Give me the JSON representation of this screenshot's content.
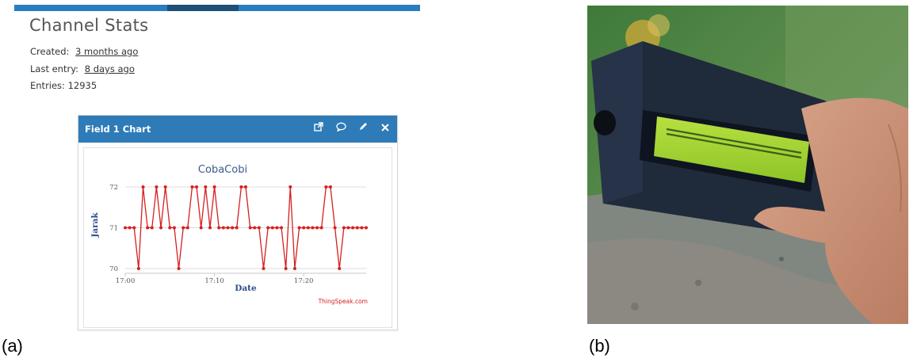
{
  "panel_a": {
    "title": "Channel Stats",
    "created_label": "Created:",
    "created_value": "3 months ago",
    "last_entry_label": "Last entry:",
    "last_entry_value": "8 days ago",
    "entries_label": "Entries:",
    "entries_value": "12935",
    "widget": {
      "title": "Field 1 Chart",
      "icons": [
        "external-link-icon",
        "comment-icon",
        "pencil-icon",
        "close-icon"
      ],
      "credit": "ThingSpeak.com"
    }
  },
  "chart_data": {
    "type": "line",
    "title": "CobaCobi",
    "xlabel": "Date",
    "ylabel": "Jarak",
    "x_ticks": [
      "17:00",
      "17:10",
      "17:20"
    ],
    "y_ticks": [
      70,
      71,
      72
    ],
    "ylim": [
      70,
      72
    ],
    "xlim_minutes": [
      0,
      27
    ],
    "grid": true,
    "series": [
      {
        "color": "#d62020",
        "x_minutes": [
          0,
          0.5,
          1,
          1.5,
          2,
          2.5,
          3,
          3.5,
          4,
          4.5,
          5,
          5.5,
          6,
          6.5,
          7,
          7.5,
          8,
          8.5,
          9,
          9.5,
          10,
          10.5,
          11,
          11.5,
          12,
          12.5,
          13,
          13.5,
          14,
          14.5,
          15,
          15.5,
          16,
          16.5,
          17,
          17.5,
          18,
          18.5,
          19,
          19.5,
          20,
          20.5,
          21,
          21.5,
          22,
          22.5,
          23,
          23.5,
          24,
          24.5,
          25,
          25.5,
          26,
          26.5,
          27
        ],
        "y": [
          71,
          71,
          71,
          70,
          72,
          71,
          71,
          72,
          71,
          72,
          71,
          71,
          70,
          71,
          71,
          72,
          72,
          71,
          72,
          71,
          72,
          71,
          71,
          71,
          71,
          71,
          72,
          72,
          71,
          71,
          71,
          70,
          71,
          71,
          71,
          71,
          70,
          72,
          70,
          71,
          71,
          71,
          71,
          71,
          71,
          72,
          72,
          71,
          70,
          71,
          71,
          71,
          71,
          71,
          71
        ]
      }
    ]
  },
  "captions": {
    "a": "(a)",
    "b": "(b)"
  },
  "colors": {
    "header_blue": "#2e7bb8",
    "line_red": "#d62020"
  }
}
